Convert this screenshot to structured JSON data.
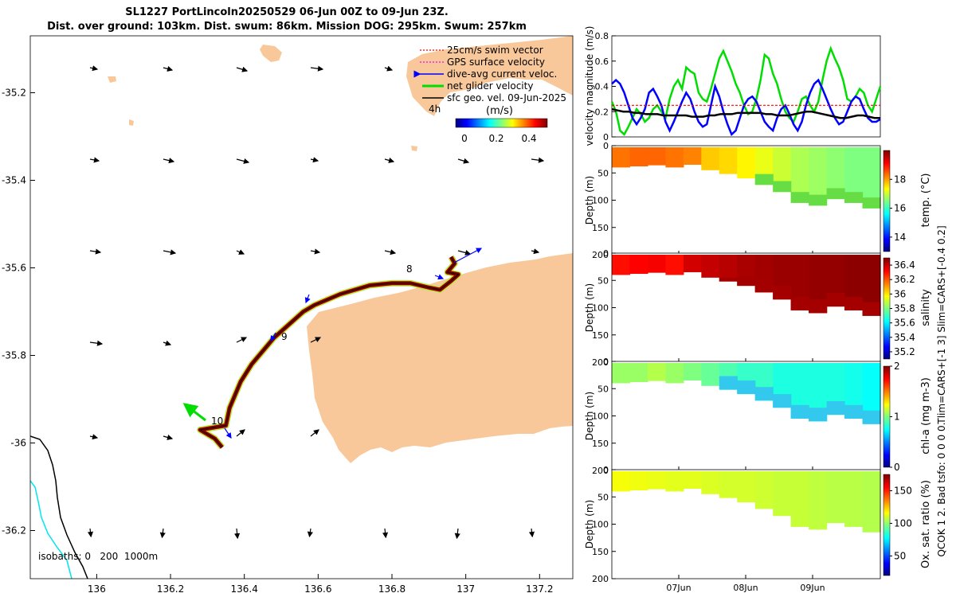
{
  "header": {
    "title_line1": "SL1227 PortLincoln20250529 06-Jun 00Z to 09-Jun 23Z.",
    "title_line2": "Dist. over ground: 103km. Dist. swum: 86km. Mission DOG: 295km. Swum: 257km"
  },
  "colors": {
    "land": "#f9c89a",
    "track_fast": "#8b0000",
    "swim_vector": "#ff0000",
    "gps_velocity": "#ff00ff",
    "dive_avg_current": "#0000ff",
    "net_glider": "#00dd00",
    "sfc_geo": "#000000",
    "isobath_200": "#000000",
    "isobath_1000": "#00e5ee"
  },
  "chart_data": [
    {
      "type": "map",
      "x_ticks": [
        "136",
        "136.2",
        "136.4",
        "136.6",
        "136.8",
        "137",
        "137.2"
      ],
      "y_ticks": [
        "-35.2",
        "-35.4",
        "-35.6",
        "-35.8",
        "-36",
        "-36.2"
      ],
      "xlim": [
        135.82,
        137.29
      ],
      "ylim": [
        -36.31,
        -35.07
      ],
      "legend": [
        {
          "label": "25cm/s swim vector",
          "color": "#ff0000"
        },
        {
          "label": "GPS surface velocity",
          "color": "#ff00ff"
        },
        {
          "label": "dive-avg current veloc.",
          "color": "#0000ff"
        },
        {
          "label": "net glider velocity",
          "color": "#00dd00"
        },
        {
          "label": "sfc geo. vel. 09-Jun-2025",
          "color": "#000000"
        }
      ],
      "legend_placement": "top-right",
      "time_marker_label": "4h",
      "colorbar": {
        "label": "(m/s)",
        "ticks": [
          "0",
          "0.2",
          "0.4"
        ],
        "range": [
          0,
          0.5
        ]
      },
      "day_labels": [
        "8",
        "9",
        "10"
      ],
      "isobath_label": "isobaths: 0   200  1000m",
      "track": [
        [
          136.34,
          -36.01
        ],
        [
          136.32,
          -35.99
        ],
        [
          136.28,
          -35.97
        ],
        [
          136.35,
          -35.96
        ],
        [
          136.36,
          -35.92
        ],
        [
          136.39,
          -35.86
        ],
        [
          136.42,
          -35.82
        ],
        [
          136.45,
          -35.79
        ],
        [
          136.48,
          -35.76
        ],
        [
          136.52,
          -35.73
        ],
        [
          136.56,
          -35.7
        ],
        [
          136.59,
          -35.685
        ],
        [
          136.66,
          -35.66
        ],
        [
          136.74,
          -35.64
        ],
        [
          136.8,
          -35.635
        ],
        [
          136.85,
          -35.635
        ],
        [
          136.9,
          -35.645
        ],
        [
          136.93,
          -35.65
        ],
        [
          136.96,
          -35.63
        ],
        [
          136.98,
          -35.615
        ],
        [
          136.95,
          -35.61
        ],
        [
          136.97,
          -35.59
        ],
        [
          136.96,
          -35.575
        ]
      ]
    },
    {
      "type": "line",
      "ylabel": "velocity magnitude (m/s)",
      "ylim": [
        0,
        0.8
      ],
      "y_ticks": [
        "0",
        "0.2",
        "0.4",
        "0.6",
        "0.8"
      ],
      "series": [
        {
          "name": "net glider speed",
          "color": "#00dd00",
          "values": [
            0.28,
            0.2,
            0.05,
            0.02,
            0.08,
            0.15,
            0.22,
            0.18,
            0.12,
            0.15,
            0.22,
            0.25,
            0.2,
            0.15,
            0.3,
            0.4,
            0.45,
            0.38,
            0.55,
            0.52,
            0.5,
            0.35,
            0.3,
            0.28,
            0.38,
            0.5,
            0.62,
            0.68,
            0.6,
            0.52,
            0.42,
            0.35,
            0.25,
            0.18,
            0.2,
            0.3,
            0.45,
            0.65,
            0.62,
            0.5,
            0.42,
            0.3,
            0.2,
            0.15,
            0.12,
            0.2,
            0.3,
            0.32,
            0.25,
            0.2,
            0.28,
            0.45,
            0.6,
            0.7,
            0.62,
            0.55,
            0.45,
            0.3,
            0.28,
            0.32,
            0.38,
            0.35,
            0.25,
            0.2,
            0.3,
            0.4
          ]
        },
        {
          "name": "dive-avg current speed",
          "color": "#0000ff",
          "values": [
            0.42,
            0.45,
            0.42,
            0.35,
            0.25,
            0.15,
            0.1,
            0.15,
            0.22,
            0.35,
            0.38,
            0.32,
            0.25,
            0.12,
            0.05,
            0.12,
            0.2,
            0.28,
            0.35,
            0.3,
            0.2,
            0.12,
            0.08,
            0.1,
            0.25,
            0.4,
            0.32,
            0.2,
            0.1,
            0.02,
            0.05,
            0.15,
            0.25,
            0.3,
            0.32,
            0.28,
            0.2,
            0.12,
            0.08,
            0.05,
            0.15,
            0.22,
            0.25,
            0.18,
            0.1,
            0.05,
            0.12,
            0.25,
            0.35,
            0.42,
            0.45,
            0.38,
            0.3,
            0.22,
            0.15,
            0.1,
            0.12,
            0.2,
            0.28,
            0.32,
            0.3,
            0.22,
            0.15,
            0.12,
            0.12,
            0.14
          ]
        },
        {
          "name": "sfc geo. speed",
          "color": "#000000",
          "values": [
            0.22,
            0.21,
            0.2,
            0.2,
            0.19,
            0.19,
            0.18,
            0.18,
            0.18,
            0.17,
            0.17,
            0.17,
            0.17,
            0.17,
            0.16,
            0.16,
            0.16,
            0.17,
            0.17,
            0.18,
            0.18,
            0.18,
            0.19,
            0.19,
            0.19,
            0.19,
            0.19,
            0.18,
            0.18,
            0.17,
            0.17,
            0.17,
            0.18,
            0.19,
            0.2,
            0.2,
            0.19,
            0.18,
            0.17,
            0.16,
            0.15,
            0.15,
            0.16,
            0.17,
            0.17,
            0.16,
            0.15,
            0.15
          ]
        },
        {
          "name": "25cm/s swim reference",
          "color": "#ff0000",
          "values": [
            0.25,
            0.25
          ]
        }
      ]
    },
    {
      "type": "heatmap",
      "variable": "temperature",
      "ylabel": "Depth (m)",
      "clabel": "temp. (°C)",
      "ylim": [
        0,
        200
      ],
      "y_ticks": [
        "0",
        "50",
        "100",
        "150",
        "200"
      ],
      "colorbar_ticks": [
        "14",
        "16",
        "18"
      ],
      "crange": [
        13,
        20
      ],
      "bottom_depth": [
        40,
        38,
        36,
        40,
        35,
        45,
        52,
        60,
        72,
        85,
        105,
        110,
        98,
        105,
        115
      ],
      "values": [
        18.3,
        18.4,
        18.4,
        18.3,
        18.2,
        17.7,
        17.6,
        17.4,
        17.2,
        17.0,
        16.8,
        16.7,
        16.6,
        16.5,
        16.5
      ]
    },
    {
      "type": "heatmap",
      "variable": "salinity",
      "ylabel": "Depth (m)",
      "clabel": "salinity",
      "ylim": [
        0,
        200
      ],
      "y_ticks": [
        "0",
        "50",
        "100",
        "150",
        "200"
      ],
      "colorbar_ticks": [
        "35.2",
        "35.4",
        "35.6",
        "35.8",
        "36",
        "36.2",
        "36.4"
      ],
      "crange": [
        35.1,
        36.5
      ],
      "bottom_depth": [
        40,
        38,
        36,
        40,
        35,
        45,
        52,
        60,
        72,
        85,
        105,
        110,
        98,
        105,
        115
      ],
      "values": [
        36.3,
        36.32,
        36.33,
        36.3,
        36.38,
        36.4,
        36.42,
        36.44,
        36.45,
        36.46,
        36.46,
        36.47,
        36.47,
        36.48,
        36.48
      ]
    },
    {
      "type": "heatmap",
      "variable": "chlorophyll-a",
      "ylabel": "Depth (m)",
      "clabel": "chl-a  (mg m-3)",
      "ylim": [
        0,
        200
      ],
      "y_ticks": [
        "0",
        "50",
        "100",
        "150",
        "200"
      ],
      "colorbar_ticks": [
        "0",
        "1",
        "2"
      ],
      "crange": [
        0,
        2
      ],
      "bottom_depth": [
        40,
        38,
        36,
        40,
        35,
        45,
        52,
        60,
        72,
        85,
        105,
        110,
        98,
        105,
        115
      ],
      "values": [
        1.05,
        1.05,
        1.1,
        1.05,
        1.0,
        0.95,
        0.9,
        0.85,
        0.85,
        0.8,
        0.8,
        0.8,
        0.8,
        0.78,
        0.75
      ]
    },
    {
      "type": "heatmap",
      "variable": "oxygen saturation",
      "ylabel": "Depth (m)",
      "clabel": "Ox. sat. ratio (%)",
      "ylim": [
        0,
        200
      ],
      "y_ticks": [
        "0",
        "50",
        "100",
        "150",
        "200"
      ],
      "x_ticks": [
        "07Jun",
        "08Jun",
        "09Jun"
      ],
      "colorbar_ticks": [
        "50",
        "100",
        "150"
      ],
      "crange": [
        20,
        175
      ],
      "bottom_depth": [
        40,
        38,
        36,
        40,
        35,
        45,
        52,
        60,
        72,
        85,
        105,
        110,
        98,
        105,
        115
      ],
      "values": [
        115,
        114,
        113,
        112,
        112,
        111,
        110,
        110,
        109,
        108,
        108,
        107,
        106,
        106,
        105
      ]
    }
  ],
  "side_notes": {
    "tlim": "Tlim=CARS+[-1 3] Slim=CARS+[-0.4 0.2]",
    "qc": "QCOK 1  2. Bad tsfo: 0  0  0  0."
  }
}
